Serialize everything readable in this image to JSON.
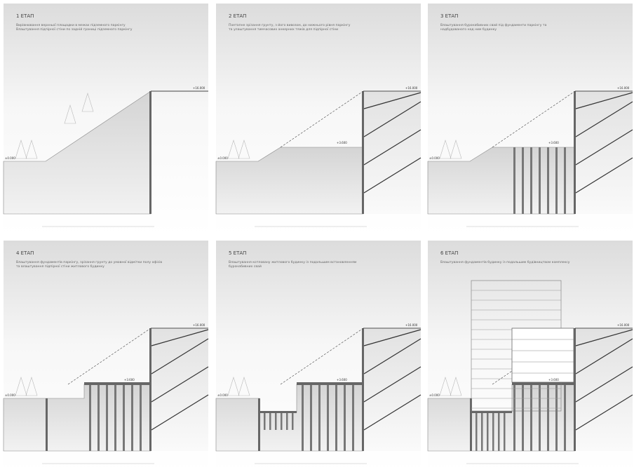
{
  "stages": [
    {
      "title": "1 ЕТАП",
      "description": [
        "Вирівнювання верхньої площадки в межах підземного паркінгу",
        "Влаштування підпірної стіни по задній границі підземного паркінгу"
      ],
      "levels": [
        "+16.000",
        "±0.000"
      ]
    },
    {
      "title": "2 ЕТАП",
      "description": [
        "Поетапне зрізання грунту, з його вивозом, до нижнього рівня паркінгу",
        "та улаштування тимчасових анкерних тяжів для підпірної стіни"
      ],
      "levels": [
        "+16.000",
        "+3.600",
        "±0.000"
      ]
    },
    {
      "title": "3 ЕТАП",
      "description": [
        "Влаштування буронабивних свай під фундаменти паркінгу та",
        "надбудованого над ним будинку"
      ],
      "levels": [
        "+16.000",
        "+3.600",
        "±0.000"
      ]
    },
    {
      "title": "4 ЕТАП",
      "description": [
        "Влаштування фундаментів паркінгу, зрізання грунту до умовної відмітки полу офісів",
        "та влаштування підпірної стіни житлового будинку"
      ],
      "levels": [
        "+16.000",
        "+3.600",
        "±0.000"
      ]
    },
    {
      "title": "5 ЕТАП",
      "description": [
        "Влаштування котловану житлового будинку із подальшим встановленням",
        "буронабивних свай"
      ],
      "levels": [
        "+16.000",
        "+3.600",
        "±0.000"
      ]
    },
    {
      "title": "6 ЕТАП",
      "description": [
        "Влаштування фундаментів будинку із подальшим будівництвом комплексу"
      ],
      "levels": [
        "+16.000",
        "+3.600",
        "±0.000"
      ]
    }
  ]
}
